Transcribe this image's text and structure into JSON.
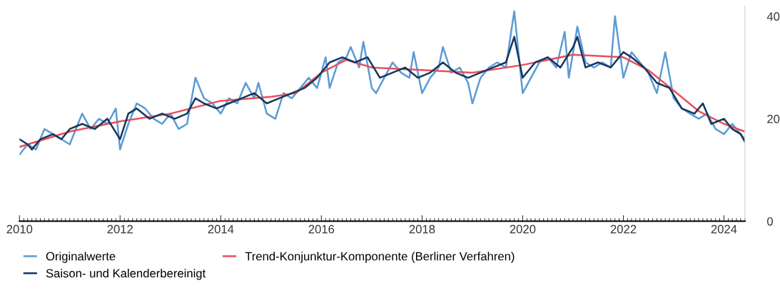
{
  "chart_data": {
    "type": "line",
    "series": [
      {
        "name": "Originalwerte",
        "color": "#5b9bd5",
        "x": [
          "2010-01",
          "2010-03",
          "2010-05",
          "2010-07",
          "2010-09",
          "2010-11",
          "2011-01",
          "2011-03",
          "2011-04",
          "2011-06",
          "2011-08",
          "2011-10",
          "2011-12",
          "2012-01",
          "2012-03",
          "2012-05",
          "2012-07",
          "2012-09",
          "2012-11",
          "2013-01",
          "2013-03",
          "2013-05",
          "2013-07",
          "2013-09",
          "2013-11",
          "2014-01",
          "2014-03",
          "2014-05",
          "2014-07",
          "2014-09",
          "2014-10",
          "2014-12",
          "2015-02",
          "2015-04",
          "2015-06",
          "2015-08",
          "2015-10",
          "2015-12",
          "2016-02",
          "2016-03",
          "2016-05",
          "2016-07",
          "2016-08",
          "2016-10",
          "2016-11",
          "2017-01",
          "2017-02",
          "2017-04",
          "2017-06",
          "2017-08",
          "2017-10",
          "2017-11",
          "2018-01",
          "2018-03",
          "2018-05",
          "2018-06",
          "2018-08",
          "2018-10",
          "2018-12",
          "2019-01",
          "2019-03",
          "2019-05",
          "2019-07",
          "2019-09",
          "2019-11",
          "2020-01",
          "2020-03",
          "2020-05",
          "2020-07",
          "2020-09",
          "2020-11",
          "2020-12",
          "2021-02",
          "2021-04",
          "2021-06",
          "2021-08",
          "2021-10",
          "2021-11",
          "2022-01",
          "2022-03",
          "2022-05",
          "2022-07",
          "2022-09",
          "2022-11",
          "2023-01",
          "2023-03",
          "2023-05",
          "2023-07",
          "2023-09",
          "2023-11",
          "2024-01",
          "2024-03",
          "2024-05",
          "2024-06"
        ],
        "values": [
          13,
          15,
          14,
          18,
          17,
          16,
          15,
          19,
          21,
          18,
          20,
          19,
          22,
          14,
          19,
          23,
          22,
          20,
          19,
          21,
          18,
          19,
          28,
          24,
          23,
          21,
          24,
          23,
          27,
          24,
          27,
          21,
          20,
          25,
          24,
          26,
          28,
          26,
          32,
          26,
          31,
          32,
          34,
          30,
          35,
          26,
          25,
          28,
          31,
          29,
          28,
          33,
          25,
          28,
          30,
          34,
          29,
          30,
          27,
          23,
          28,
          30,
          31,
          30,
          41,
          25,
          28,
          31,
          32,
          30,
          37,
          28,
          38,
          31,
          30,
          31,
          30,
          40,
          28,
          33,
          31,
          29,
          25,
          33,
          24,
          22,
          21,
          20,
          21,
          18,
          17,
          19,
          17,
          16
        ]
      },
      {
        "name": "Trend-Konjunktur-Komponente (Berliner Verfahren)",
        "color": "#e8505b",
        "x": [
          "2010-01",
          "2011-01",
          "2012-01",
          "2013-01",
          "2014-01",
          "2015-01",
          "2015-07",
          "2016-01",
          "2016-07",
          "2017-01",
          "2018-01",
          "2019-01",
          "2020-01",
          "2021-01",
          "2022-01",
          "2022-07",
          "2023-01",
          "2023-07",
          "2024-01",
          "2024-06"
        ],
        "values": [
          14.5,
          17.5,
          19.5,
          21,
          23.5,
          24.3,
          25,
          29,
          31.5,
          30,
          29.5,
          29,
          30.5,
          32.5,
          32,
          29.5,
          25.5,
          21.5,
          19,
          17.5
        ]
      },
      {
        "name": "Saison- und Kalenderbereinigt",
        "color": "#16365c",
        "x": [
          "2010-01",
          "2010-03",
          "2010-04",
          "2010-06",
          "2010-09",
          "2010-11",
          "2011-01",
          "2011-04",
          "2011-07",
          "2011-10",
          "2012-01",
          "2012-03",
          "2012-05",
          "2012-08",
          "2012-11",
          "2013-02",
          "2013-05",
          "2013-07",
          "2013-09",
          "2013-12",
          "2014-03",
          "2014-06",
          "2014-09",
          "2014-12",
          "2015-03",
          "2015-06",
          "2015-09",
          "2015-12",
          "2016-03",
          "2016-06",
          "2016-09",
          "2016-12",
          "2017-03",
          "2017-06",
          "2017-09",
          "2017-12",
          "2018-03",
          "2018-06",
          "2018-09",
          "2018-12",
          "2019-03",
          "2019-06",
          "2019-09",
          "2019-11",
          "2020-01",
          "2020-04",
          "2020-07",
          "2020-10",
          "2021-01",
          "2021-02",
          "2021-04",
          "2021-07",
          "2021-10",
          "2022-01",
          "2022-03",
          "2022-06",
          "2022-09",
          "2022-12",
          "2023-03",
          "2023-06",
          "2023-08",
          "2023-10",
          "2024-01",
          "2024-03",
          "2024-05",
          "2024-06"
        ],
        "values": [
          16,
          15,
          14,
          16,
          17,
          16,
          18,
          19,
          18,
          20,
          16,
          21,
          22,
          20,
          21,
          20,
          21,
          24,
          23,
          22,
          23,
          24,
          25,
          23,
          24,
          25,
          26,
          28,
          31,
          32,
          31,
          32,
          28,
          29,
          30,
          28,
          29,
          31,
          29,
          28,
          29,
          30,
          31,
          36,
          28,
          31,
          32,
          30,
          34,
          36,
          30,
          31,
          30,
          33,
          32,
          30,
          27,
          26,
          22,
          21,
          23,
          19,
          20,
          18,
          17,
          15.5
        ]
      }
    ],
    "xlim": [
      "2010-01",
      "2024-06"
    ],
    "xticks": [
      "2010",
      "2012",
      "2014",
      "2016",
      "2018",
      "2020",
      "2022",
      "2024"
    ],
    "ylim": [
      0,
      42
    ],
    "yticks": [
      0,
      20,
      40
    ],
    "grid": false,
    "legend": "bottom left",
    "marker": "none",
    "line_style": "solid"
  }
}
